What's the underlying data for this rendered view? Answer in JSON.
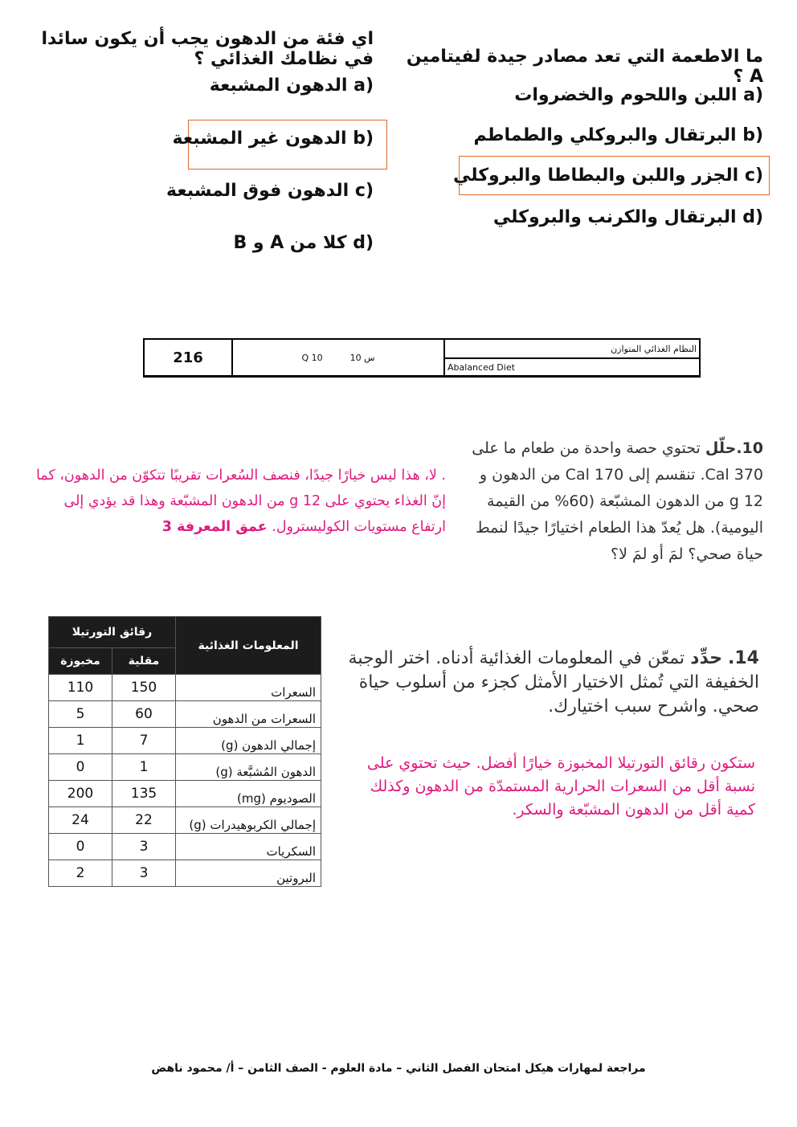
{
  "q_fats": {
    "question": "اي فئة من الدهون يجب أن يكون سائدا في نظامك الغذائي ؟",
    "options": [
      {
        "letter": "(a",
        "text": "الدهون المشبعة"
      },
      {
        "letter": "(b",
        "text": "الدهون غير المشبعة",
        "selected": true
      },
      {
        "letter": "(c",
        "text": "الدهون فوق المشبعة"
      },
      {
        "letter": "(d",
        "text": "كلا من A و B"
      }
    ]
  },
  "q_vitamin": {
    "question": "ما الاطعمة التي تعد مصادر جيدة لفيتامين A ؟",
    "options": [
      {
        "letter": "(a",
        "text": "اللبن واللحوم والخضروات"
      },
      {
        "letter": "(b",
        "text": "البرتقال والبروكلي والطماطم"
      },
      {
        "letter": "(c",
        "text": "الجزر واللبن والبطاطا والبروكلي",
        "selected": true
      },
      {
        "letter": "(d",
        "text": "البرتقال والكرنب والبروكلي"
      }
    ]
  },
  "header_table": {
    "page": "216",
    "q_en": "Q 10",
    "q_ar": "س 10",
    "title_ar": "النظام الغذائي المتوازن",
    "title_en": "Abalanced Diet"
  },
  "q10": {
    "number": "10.",
    "verb": "حلّل",
    "text": "تحتوي حصة واحدة من طعام ما على 370 Cal. تنقسم إلى 170 Cal من الدهون و 12 g من الدهون المشبّعة (60% من القيمة اليومية). هل يُعدّ هذا الطعام اختيارًا جيدًا لنمط حياة صحي؟ لمَ أو لمَ لا؟",
    "answer": ". لا، هذا ليس خيارًا جيدًا، فنصف السُعرات تقريبًا تتكوّن من الدهون، كما إنّ الغذاء يحتوي على 12 g من الدهون المشبّعة وهذا قد يؤدي إلى ارتفاع مستويات الكوليسترول.",
    "dok": "عمق المعرفة 3"
  },
  "q14": {
    "number": "14.",
    "verb": "حدِّد",
    "text": "تمعّن في المعلومات الغذائية أدناه. اختر الوجبة الخفيفة التي تُمثل الاختيار الأمثل كجزء من أسلوب حياة صحي. واشرح سبب اختيارك.",
    "answer": "ستكون رقائق التورتيلا المخبوزة خيارًا أفضل. حيث تحتوي على نسبة أقل من السعرات الحرارية المستمدّة من الدهون وكذلك كمية أقل من الدهون المشبّعة والسكر."
  },
  "nutrition": {
    "header_label": "المعلومات الغذائية",
    "group": "رقائق التورتيلا",
    "col_fried": "مقلية",
    "col_baked": "مخبوزة",
    "rows": [
      {
        "label": "السعرات",
        "fried": "150",
        "baked": "110"
      },
      {
        "label": "السعرات من الدهون",
        "fried": "60",
        "baked": "5"
      },
      {
        "label": "إجمالي الدهون (g)",
        "fried": "7",
        "baked": "1"
      },
      {
        "label": "الدهون المُشبَّعة (g)",
        "fried": "1",
        "baked": "0"
      },
      {
        "label": "الصوديوم (mg)",
        "fried": "135",
        "baked": "200"
      },
      {
        "label": "إجمالي الكربوهيدرات (g)",
        "fried": "22",
        "baked": "24"
      },
      {
        "label": "السكريات",
        "fried": "3",
        "baked": "0"
      },
      {
        "label": "البروتين",
        "fried": "3",
        "baked": "2"
      }
    ]
  },
  "footer": "مراجعة لمهارات هيكل امتحان الفصل الثاني – مادة العلوم - الصف الثامن – أ/ محمود ناهض",
  "colors": {
    "answer": "#e0197e",
    "highlight_box": "#e06a2a"
  }
}
